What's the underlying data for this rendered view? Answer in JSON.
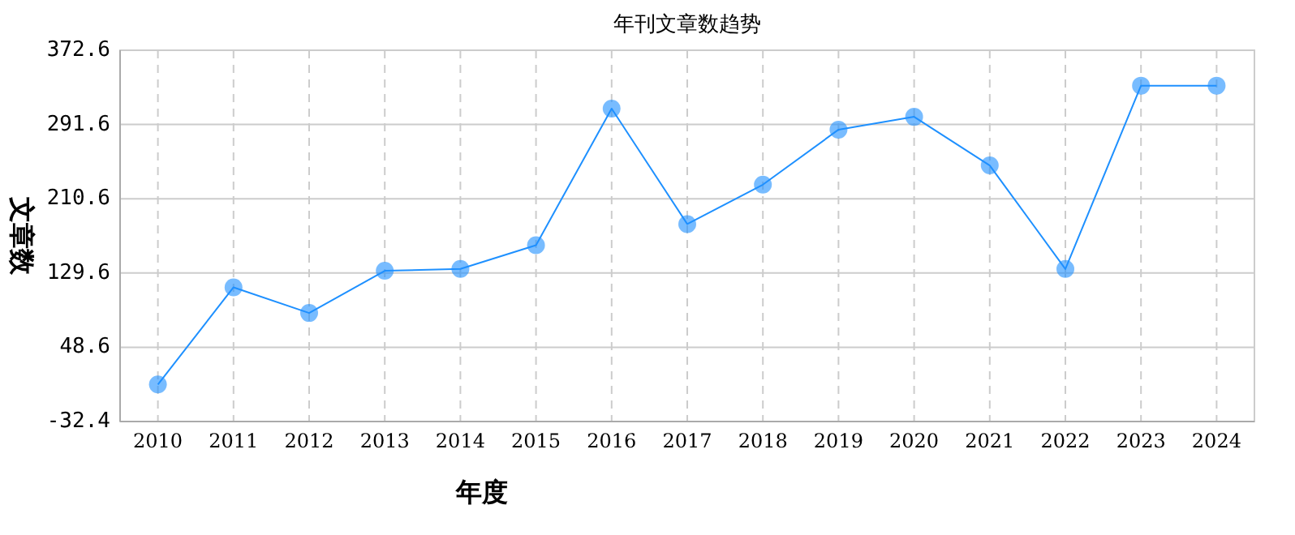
{
  "chart_data": {
    "type": "line",
    "title": "年刊文章数趋势",
    "xlabel": "年度",
    "ylabel": "文章数",
    "categories": [
      "2010",
      "2011",
      "2012",
      "2013",
      "2014",
      "2015",
      "2016",
      "2017",
      "2018",
      "2019",
      "2020",
      "2021",
      "2022",
      "2023",
      "2024"
    ],
    "series": [
      {
        "color": "#1e90ff",
        "values": [
          8,
          114,
          86,
          132,
          134,
          160,
          309,
          183,
          226,
          286,
          300,
          247,
          134,
          334,
          334
        ]
      }
    ],
    "ylim": [
      -32.4,
      372.6
    ],
    "yticks": [
      -32.4,
      48.6,
      129.6,
      210.6,
      291.6,
      372.6
    ],
    "grid": true,
    "marker": "circle",
    "line_style": "solid"
  }
}
